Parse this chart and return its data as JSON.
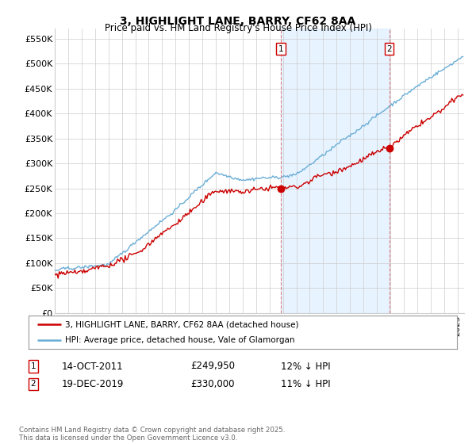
{
  "title": "3, HIGHLIGHT LANE, BARRY, CF62 8AA",
  "subtitle": "Price paid vs. HM Land Registry's House Price Index (HPI)",
  "legend_line1": "3, HIGHLIGHT LANE, BARRY, CF62 8AA (detached house)",
  "legend_line2": "HPI: Average price, detached house, Vale of Glamorgan",
  "annotation1_date": "14-OCT-2011",
  "annotation1_price": "£249,950",
  "annotation1_hpi": "12% ↓ HPI",
  "annotation2_date": "19-DEC-2019",
  "annotation2_price": "£330,000",
  "annotation2_hpi": "11% ↓ HPI",
  "footnote": "Contains HM Land Registry data © Crown copyright and database right 2025.\nThis data is licensed under the Open Government Licence v3.0.",
  "hpi_color": "#6baed6",
  "price_color": "#cc0000",
  "vline_color": "#e08080",
  "shade_color": "#ddeeff",
  "ylim": [
    0,
    570000
  ],
  "yticks": [
    0,
    50000,
    100000,
    150000,
    200000,
    250000,
    300000,
    350000,
    400000,
    450000,
    500000,
    550000
  ],
  "ytick_labels": [
    "£0",
    "£50K",
    "£100K",
    "£150K",
    "£200K",
    "£250K",
    "£300K",
    "£350K",
    "£400K",
    "£450K",
    "£500K",
    "£550K"
  ],
  "start_year": 1995,
  "end_year": 2025
}
